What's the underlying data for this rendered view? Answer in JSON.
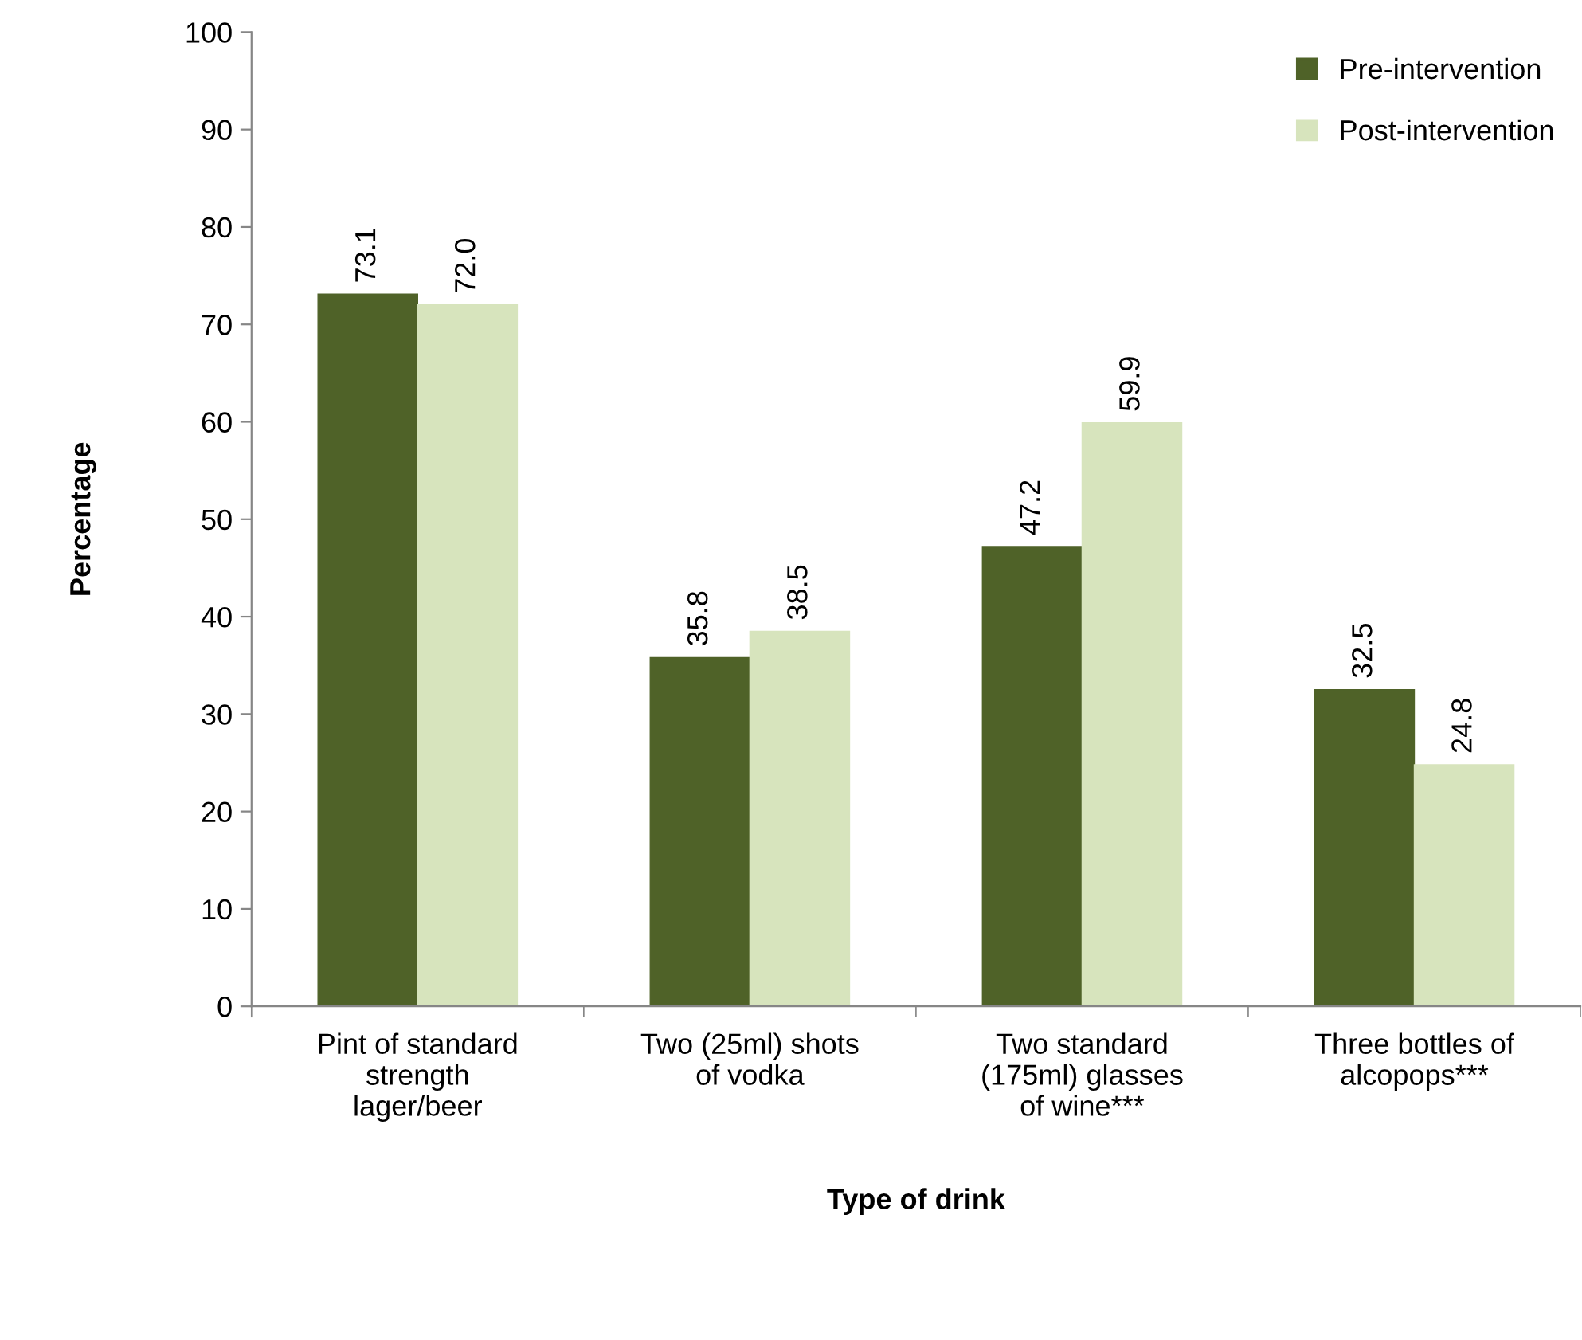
{
  "chart_data": {
    "type": "bar",
    "xlabel": "Type of drink",
    "ylabel": "Percentage",
    "categories": [
      "Pint of standard\nstrength\nlager/beer",
      "Two (25ml) shots\nof vodka",
      "Two standard\n(175ml) glasses\nof wine***",
      "Three bottles of\nalcopops***"
    ],
    "series": [
      {
        "name": "Pre-intervention",
        "color": "#4f6228",
        "values": [
          73.1,
          35.8,
          47.2,
          32.5
        ],
        "value_labels": [
          "73.1",
          "35.8",
          "47.2",
          "32.5"
        ]
      },
      {
        "name": "Post-intervention",
        "color": "#d7e4bd",
        "values": [
          72.0,
          38.5,
          59.9,
          24.8
        ],
        "value_labels": [
          "72.0",
          "38.5",
          "59.9",
          "24.8"
        ]
      }
    ],
    "ylim": [
      0,
      100
    ],
    "yticks": [
      0,
      10,
      20,
      30,
      40,
      50,
      60,
      70,
      80,
      90,
      100
    ],
    "grid": false,
    "legend": "top right",
    "marker": "square"
  }
}
